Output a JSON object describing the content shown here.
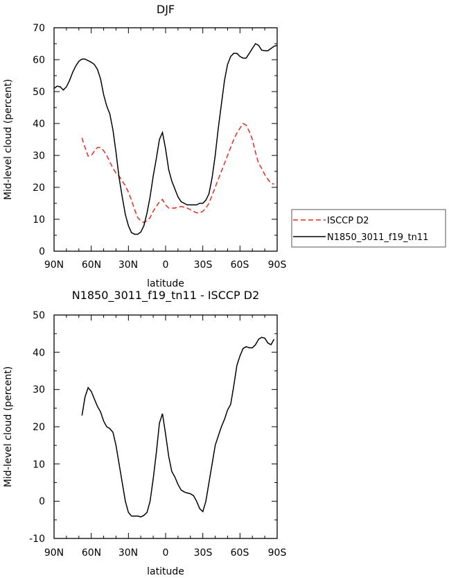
{
  "chart_data": [
    {
      "type": "line",
      "title": "DJF",
      "xlabel": "latitude",
      "ylabel": "Mid-level cloud (percent)",
      "xlim": [
        -90,
        90
      ],
      "ylim": [
        0,
        70
      ],
      "x_ticks": [
        -90,
        -60,
        -30,
        0,
        30,
        60,
        90
      ],
      "x_tick_labels": [
        "90N",
        "60N",
        "30N",
        "0",
        "30S",
        "60S",
        "90S"
      ],
      "y_ticks": [
        0,
        10,
        20,
        30,
        40,
        50,
        60,
        70
      ],
      "y_tick_labels": [
        "0",
        "10",
        "20",
        "30",
        "40",
        "50",
        "60",
        "70"
      ],
      "legend": {
        "placement": "right",
        "entries": [
          "ISCCP D2",
          "N1850_3011_f19_tn11"
        ]
      },
      "series": [
        {
          "name": "ISCCP D2",
          "color": "#e8281e",
          "dash": "dashed",
          "x": [
            -67.5,
            -65,
            -62.5,
            -60,
            -57.5,
            -55,
            -52.5,
            -50,
            -47.5,
            -45,
            -42.5,
            -40,
            -37.5,
            -35,
            -32.5,
            -30,
            -27.5,
            -25,
            -22.5,
            -20,
            -17.5,
            -15,
            -12.5,
            -10,
            -7.5,
            -5,
            -2.5,
            0,
            2.5,
            5,
            7.5,
            10,
            12.5,
            15,
            17.5,
            20,
            22.5,
            25,
            27.5,
            30,
            32.5,
            35,
            37.5,
            40,
            42.5,
            45,
            47.5,
            50,
            52.5,
            55,
            57.5,
            60,
            62.5,
            65,
            67.5,
            70,
            72.5,
            75,
            77.5,
            80,
            82.5,
            85,
            87.5
          ],
          "values": [
            35.5,
            32.5,
            29.8,
            30,
            31.3,
            32.5,
            32.5,
            31.5,
            30,
            28,
            26,
            24.5,
            23.5,
            22,
            20.5,
            18.5,
            16,
            13,
            10.5,
            9.5,
            9,
            9.5,
            10.5,
            12.5,
            14,
            15.5,
            16.2,
            14.5,
            13.5,
            13.5,
            13.5,
            13.8,
            14,
            13.8,
            13.5,
            13,
            12.5,
            12,
            12,
            12.5,
            13.5,
            15,
            17.5,
            20,
            22.5,
            25,
            27.5,
            30,
            32.5,
            35,
            37,
            38.5,
            40,
            39.5,
            37.5,
            35,
            31,
            27.5,
            26,
            24,
            22.5,
            21.3,
            21
          ]
        },
        {
          "name": "N1850_3011_f19_tn11",
          "color": "#000000",
          "dash": "solid",
          "x": [
            -90,
            -87.5,
            -85,
            -82.5,
            -80,
            -77.5,
            -75,
            -72.5,
            -70,
            -67.5,
            -65,
            -62.5,
            -60,
            -57.5,
            -55,
            -52.5,
            -50,
            -47.5,
            -45,
            -42.5,
            -40,
            -37.5,
            -35,
            -32.5,
            -30,
            -27.5,
            -25,
            -22.5,
            -20,
            -17.5,
            -15,
            -12.5,
            -10,
            -7.5,
            -5,
            -2.5,
            0,
            2.5,
            5,
            7.5,
            10,
            12.5,
            15,
            17.5,
            20,
            22.5,
            25,
            27.5,
            30,
            32.5,
            35,
            37.5,
            40,
            42.5,
            45,
            47.5,
            50,
            52.5,
            55,
            57.5,
            60,
            62.5,
            65,
            67.5,
            70,
            72.5,
            75,
            77.5,
            80,
            82.5,
            85,
            87.5,
            90
          ],
          "values": [
            51,
            51.7,
            51.5,
            50.5,
            51.5,
            53.5,
            56,
            58,
            59.5,
            60.2,
            60.2,
            59.7,
            59.2,
            58.5,
            57,
            54,
            49,
            45.5,
            43,
            38,
            31,
            23,
            17,
            11.5,
            8,
            5.8,
            5.3,
            5.3,
            6,
            8,
            12,
            17,
            23.5,
            29,
            35,
            37.2,
            32,
            25.5,
            22,
            19.5,
            17,
            15.5,
            15,
            14.5,
            14.5,
            14.5,
            14.5,
            15,
            15,
            16,
            18,
            23,
            30,
            38.5,
            46,
            53.5,
            58.5,
            61,
            62,
            62,
            61,
            60.5,
            60.5,
            62,
            63.5,
            65,
            64.5,
            63,
            62.8,
            62.8,
            63.5,
            64.2,
            64.5
          ]
        }
      ]
    },
    {
      "type": "line",
      "title": "N1850_3011_f19_tn11 - ISCCP D2",
      "xlabel": "latitude",
      "ylabel": "Mid-level cloud (percent)",
      "xlim": [
        -90,
        90
      ],
      "ylim": [
        -10,
        50
      ],
      "x_ticks": [
        -90,
        -60,
        -30,
        0,
        30,
        60,
        90
      ],
      "x_tick_labels": [
        "90N",
        "60N",
        "30N",
        "0",
        "30S",
        "60S",
        "90S"
      ],
      "y_ticks": [
        -10,
        0,
        10,
        20,
        30,
        40,
        50
      ],
      "y_tick_labels": [
        "-10",
        "0",
        "10",
        "20",
        "30",
        "40",
        "50"
      ],
      "series": [
        {
          "name": "N1850_3011_f19_tn11 - ISCCP D2",
          "color": "#000000",
          "dash": "solid",
          "x": [
            -67.5,
            -65,
            -62.5,
            -60,
            -57.5,
            -55,
            -52.5,
            -50,
            -47.5,
            -45,
            -42.5,
            -40,
            -37.5,
            -35,
            -32.5,
            -30,
            -27.5,
            -25,
            -22.5,
            -20,
            -17.5,
            -15,
            -12.5,
            -10,
            -7.5,
            -5,
            -2.5,
            0,
            2.5,
            5,
            7.5,
            10,
            12.5,
            15,
            17.5,
            20,
            22.5,
            25,
            27.5,
            30,
            32.5,
            35,
            37.5,
            40,
            42.5,
            45,
            47.5,
            50,
            52.5,
            55,
            57.5,
            60,
            62.5,
            65,
            67.5,
            70,
            72.5,
            75,
            77.5,
            80,
            82.5,
            85,
            87.5
          ],
          "values": [
            23,
            28,
            30.5,
            29.5,
            27.5,
            25.5,
            24,
            21.5,
            20,
            19.5,
            18.5,
            15,
            10,
            5,
            0,
            -3,
            -4,
            -4,
            -4,
            -4.2,
            -3.8,
            -3,
            0,
            6,
            13,
            21,
            23.5,
            18,
            12,
            8,
            6.5,
            4.5,
            3,
            2.5,
            2.2,
            2,
            1.5,
            0,
            -2,
            -2.8,
            0,
            5,
            10,
            15,
            17.5,
            20,
            22,
            24.5,
            26,
            31,
            36.5,
            39,
            41,
            41.5,
            41.2,
            41.2,
            42,
            43.5,
            44,
            43.8,
            42.5,
            42,
            43.5
          ]
        }
      ]
    }
  ]
}
